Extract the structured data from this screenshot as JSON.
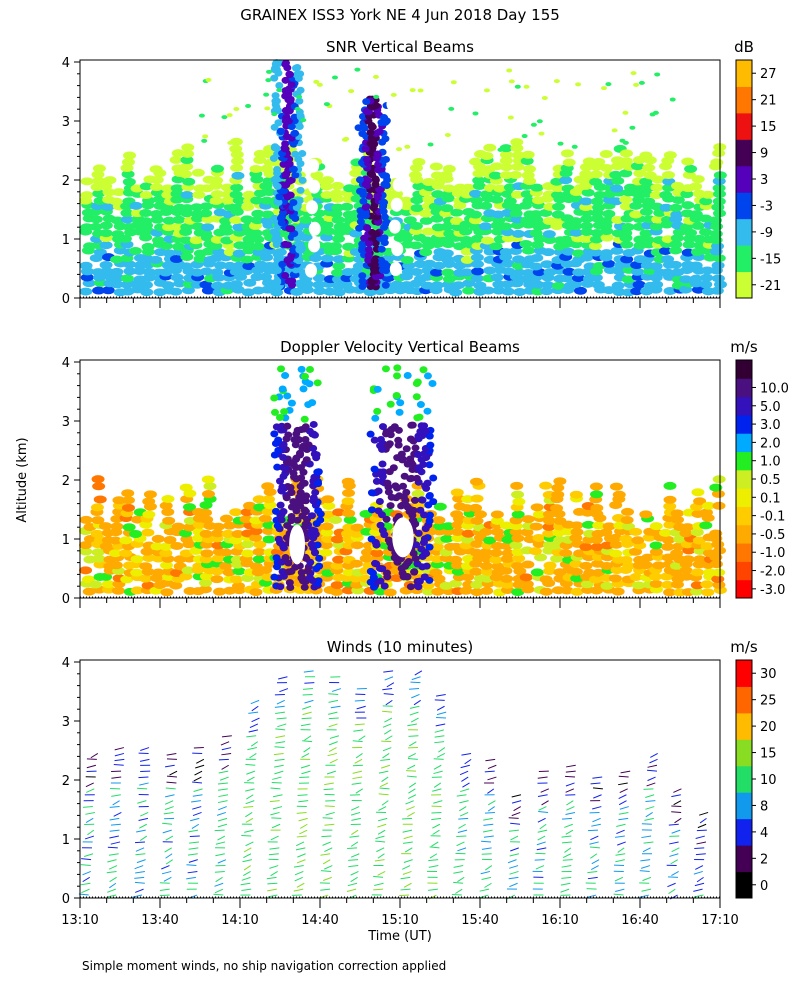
{
  "figure_title": "GRAINEX ISS3 York NE   4 Jun 2018 Day 155",
  "footnote": "Simple moment winds, no ship navigation correction applied",
  "shared": {
    "ylabel": "Altitude (km)",
    "xlabel": "Time (UT)",
    "x_ticks": [
      "13:10",
      "13:40",
      "14:10",
      "14:40",
      "15:10",
      "15:40",
      "16:10",
      "16:40",
      "17:10"
    ],
    "y_ticks": [
      "0",
      "1",
      "2",
      "3",
      "4"
    ],
    "ylim": [
      0,
      4
    ],
    "xlim": [
      "13:10",
      "17:10"
    ]
  },
  "colors": {
    "snr": [
      "#ccff33",
      "#22ee66",
      "#33bbee",
      "#0044ee",
      "#5500bb",
      "#440055",
      "#ee1111",
      "#ff7700",
      "#ffbb00"
    ],
    "doppler": [
      "#ff0000",
      "#ff4400",
      "#ff7700",
      "#ffaa00",
      "#ffcc00",
      "#eeee00",
      "#ccee22",
      "#22ee22",
      "#00aaff",
      "#0022ee",
      "#3311bb",
      "#4a1080",
      "#330033"
    ],
    "winds": [
      "#000000",
      "#440055",
      "#1122ee",
      "#1199ee",
      "#22dd66",
      "#88dd22",
      "#ffbb00",
      "#ff6600",
      "#ff0000"
    ]
  },
  "chart_data": [
    {
      "type": "heatmap",
      "title": "SNR Vertical Beams",
      "units": "dB",
      "ylabel": "Altitude (km)",
      "ylim": [
        0,
        4
      ],
      "x_range": [
        "13:10",
        "17:10"
      ],
      "colorbar_ticks": [
        "-21",
        "-15",
        "-9",
        "-3",
        "3",
        "9",
        "15",
        "21",
        "27"
      ],
      "features": [
        {
          "start": "13:10",
          "end": "17:10",
          "alt_top_km": 2.5,
          "level_db": -15
        },
        {
          "start": "14:23",
          "end": "14:33",
          "alt_top_km": 4.0,
          "level_db": 3
        },
        {
          "start": "14:55",
          "end": "15:05",
          "alt_top_km": 3.4,
          "level_db": 9
        }
      ]
    },
    {
      "type": "heatmap",
      "title": "Doppler Velocity Vertical Beams",
      "units": "m/s",
      "ylabel": "Altitude (km)",
      "ylim": [
        0,
        4
      ],
      "x_range": [
        "13:10",
        "17:10"
      ],
      "colorbar_ticks": [
        "-3.0",
        "-2.0",
        "-1.0",
        "-0.5",
        "-0.1",
        "0.1",
        "0.5",
        "1.0",
        "2.0",
        "3.0",
        "5.0",
        "10.0"
      ],
      "features": [
        {
          "start": "13:10",
          "end": "17:10",
          "alt_top_km": 2.5,
          "velocity_ms": -0.5
        },
        {
          "start": "14:23",
          "end": "14:40",
          "alt_top_km": 3.0,
          "velocity_ms": 3.0
        },
        {
          "start": "14:59",
          "end": "15:22",
          "alt_top_km": 3.0,
          "velocity_ms": 3.0
        }
      ]
    },
    {
      "type": "scatter",
      "title": "Winds (10 minutes)",
      "units": "m/s",
      "ylabel": "Altitude (km)",
      "xlabel": "Time (UT)",
      "ylim": [
        0,
        4
      ],
      "x_range": [
        "13:10",
        "17:10"
      ],
      "colorbar_ticks": [
        "0",
        "2",
        "4",
        "8",
        "10",
        "15",
        "20",
        "25",
        "30"
      ],
      "profiles": [
        {
          "time": "13:15",
          "top_km": 2.5,
          "speed_ms": 9
        },
        {
          "time": "13:25",
          "top_km": 2.6,
          "speed_ms": 10
        },
        {
          "time": "13:35",
          "top_km": 2.6,
          "speed_ms": 10
        },
        {
          "time": "13:45",
          "top_km": 2.5,
          "speed_ms": 10
        },
        {
          "time": "13:55",
          "top_km": 2.6,
          "speed_ms": 9
        },
        {
          "time": "14:05",
          "top_km": 2.8,
          "speed_ms": 12
        },
        {
          "time": "14:15",
          "top_km": 3.4,
          "speed_ms": 13
        },
        {
          "time": "14:25",
          "top_km": 3.8,
          "speed_ms": 13
        },
        {
          "time": "14:35",
          "top_km": 3.9,
          "speed_ms": 14
        },
        {
          "time": "14:45",
          "top_km": 3.8,
          "speed_ms": 14
        },
        {
          "time": "14:55",
          "top_km": 3.6,
          "speed_ms": 13
        },
        {
          "time": "15:05",
          "top_km": 3.9,
          "speed_ms": 14
        },
        {
          "time": "15:15",
          "top_km": 3.9,
          "speed_ms": 14
        },
        {
          "time": "15:25",
          "top_km": 3.5,
          "speed_ms": 13
        },
        {
          "time": "15:35",
          "top_km": 2.5,
          "speed_ms": 12
        },
        {
          "time": "15:45",
          "top_km": 2.4,
          "speed_ms": 11
        },
        {
          "time": "15:55",
          "top_km": 1.8,
          "speed_ms": 10
        },
        {
          "time": "16:05",
          "top_km": 2.2,
          "speed_ms": 10
        },
        {
          "time": "16:15",
          "top_km": 2.3,
          "speed_ms": 11
        },
        {
          "time": "16:25",
          "top_km": 2.1,
          "speed_ms": 10
        },
        {
          "time": "16:35",
          "top_km": 2.2,
          "speed_ms": 10
        },
        {
          "time": "16:45",
          "top_km": 2.5,
          "speed_ms": 11
        },
        {
          "time": "16:55",
          "top_km": 1.9,
          "speed_ms": 9
        },
        {
          "time": "17:05",
          "top_km": 1.5,
          "speed_ms": 9
        }
      ]
    }
  ]
}
